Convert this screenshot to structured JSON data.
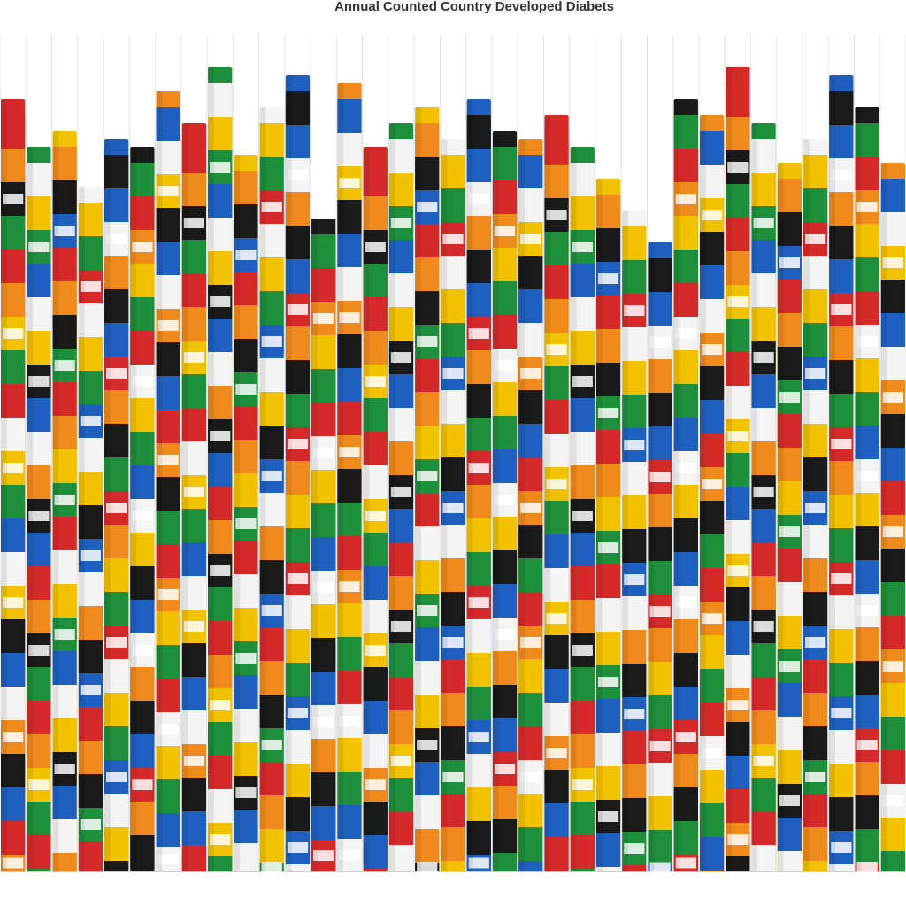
{
  "chart_data": {
    "type": "bar",
    "title": "Annual Counted Country Developed Diabets",
    "categories": [
      null,
      null,
      null,
      null,
      null,
      null,
      null,
      null,
      null,
      null,
      null,
      null,
      null,
      null,
      null,
      null,
      null,
      null,
      null,
      null,
      null,
      null,
      null,
      null,
      null,
      null,
      null,
      null,
      null,
      null,
      null,
      null,
      null,
      null,
      null
    ],
    "values": [
      97,
      91,
      93,
      86,
      92,
      91,
      98,
      94,
      101,
      90,
      96,
      100,
      82,
      99,
      91,
      94,
      96,
      92,
      97,
      93,
      92,
      95,
      91,
      87,
      83,
      79,
      97,
      95,
      101,
      94,
      89,
      92,
      100,
      96,
      89
    ],
    "colors": [
      "#d62a2a",
      "#1e8f3a",
      "#f2c200",
      "#f4f4f4",
      "#1f5fbf",
      "#1a1a1a",
      "#f08a1c"
    ],
    "ylim": [
      0,
      105
    ]
  }
}
